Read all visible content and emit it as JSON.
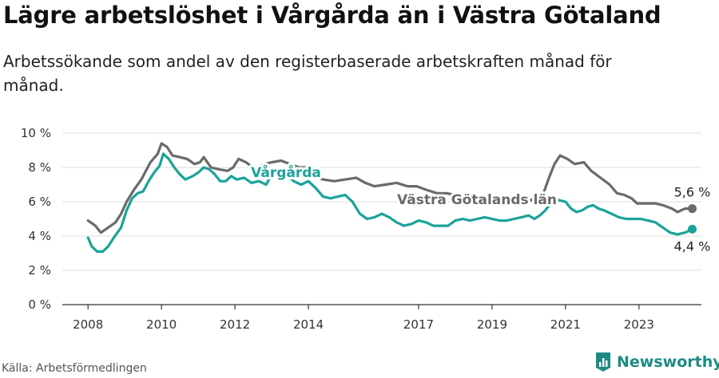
{
  "header": {
    "title": "Lägre arbetslöshet i Vårgårda än i Västra Götaland",
    "subtitle": "Arbetssökande som andel av den registerbaserade arbetskraften månad för månad."
  },
  "footer": {
    "source": "Källa: Arbetsförmedlingen",
    "brand": "Newsworthy"
  },
  "colors": {
    "vargarda": "#1aa39a",
    "vastra": "#6a6a6a",
    "grid": "#dddddd",
    "axis": "#333333"
  },
  "chart_data": {
    "type": "line",
    "title": "Lägre arbetslöshet i Vårgårda än i Västra Götaland",
    "xlabel": "",
    "ylabel": "",
    "ylim": [
      0,
      10
    ],
    "yticks": [
      0,
      2,
      4,
      6,
      8,
      10
    ],
    "ytick_labels": [
      "0 %",
      "2 %",
      "4 %",
      "6 %",
      "8 %",
      "10 %"
    ],
    "xticks": [
      2008,
      2010,
      2012,
      2014,
      2017,
      2019,
      2021,
      2023
    ],
    "xtick_labels": [
      "2008",
      "2010",
      "2012",
      "2014",
      "2017",
      "2019",
      "2021",
      "2023"
    ],
    "xlim": [
      2007.3,
      2024.7
    ],
    "series": [
      {
        "name": "Västra Götalands län",
        "label": "Västra Götalands län",
        "end_label": "5,6 %",
        "points": [
          [
            2008.0,
            4.9
          ],
          [
            2008.2,
            4.6
          ],
          [
            2008.35,
            4.2
          ],
          [
            2008.55,
            4.5
          ],
          [
            2008.75,
            4.8
          ],
          [
            2008.9,
            5.3
          ],
          [
            2009.05,
            6.0
          ],
          [
            2009.25,
            6.7
          ],
          [
            2009.45,
            7.3
          ],
          [
            2009.7,
            8.3
          ],
          [
            2009.9,
            8.8
          ],
          [
            2010.0,
            9.4
          ],
          [
            2010.15,
            9.2
          ],
          [
            2010.3,
            8.7
          ],
          [
            2010.5,
            8.6
          ],
          [
            2010.7,
            8.5
          ],
          [
            2010.9,
            8.2
          ],
          [
            2011.05,
            8.3
          ],
          [
            2011.15,
            8.6
          ],
          [
            2011.35,
            8.0
          ],
          [
            2011.55,
            7.9
          ],
          [
            2011.8,
            7.8
          ],
          [
            2011.95,
            8.0
          ],
          [
            2012.1,
            8.5
          ],
          [
            2012.3,
            8.3
          ],
          [
            2012.55,
            7.9
          ],
          [
            2012.8,
            8.2
          ],
          [
            2013.0,
            8.3
          ],
          [
            2013.25,
            8.4
          ],
          [
            2013.5,
            8.2
          ],
          [
            2013.75,
            8.0
          ],
          [
            2013.95,
            8.0
          ],
          [
            2014.15,
            7.5
          ],
          [
            2014.4,
            7.3
          ],
          [
            2014.7,
            7.2
          ],
          [
            2015.0,
            7.3
          ],
          [
            2015.3,
            7.4
          ],
          [
            2015.55,
            7.1
          ],
          [
            2015.8,
            6.9
          ],
          [
            2016.1,
            7.0
          ],
          [
            2016.4,
            7.1
          ],
          [
            2016.7,
            6.9
          ],
          [
            2016.95,
            6.9
          ],
          [
            2017.2,
            6.7
          ],
          [
            2017.5,
            6.5
          ],
          [
            2017.75,
            6.5
          ],
          [
            2018.0,
            6.4
          ],
          [
            2018.3,
            6.3
          ],
          [
            2018.6,
            6.1
          ],
          [
            2018.9,
            6.0
          ],
          [
            2019.2,
            5.9
          ],
          [
            2019.5,
            5.9
          ],
          [
            2019.75,
            5.8
          ],
          [
            2020.0,
            6.0
          ],
          [
            2020.2,
            6.3
          ],
          [
            2020.4,
            6.5
          ],
          [
            2020.55,
            7.4
          ],
          [
            2020.7,
            8.2
          ],
          [
            2020.85,
            8.7
          ],
          [
            2021.05,
            8.5
          ],
          [
            2021.25,
            8.2
          ],
          [
            2021.5,
            8.3
          ],
          [
            2021.7,
            7.8
          ],
          [
            2021.95,
            7.4
          ],
          [
            2022.2,
            7.0
          ],
          [
            2022.4,
            6.5
          ],
          [
            2022.6,
            6.4
          ],
          [
            2022.8,
            6.2
          ],
          [
            2022.95,
            5.9
          ],
          [
            2023.2,
            5.9
          ],
          [
            2023.45,
            5.9
          ],
          [
            2023.65,
            5.8
          ],
          [
            2023.9,
            5.6
          ],
          [
            2024.05,
            5.4
          ],
          [
            2024.25,
            5.6
          ],
          [
            2024.45,
            5.6
          ]
        ]
      },
      {
        "name": "Vårgårda",
        "label": "Vårgårda",
        "end_label": "4,4 %",
        "points": [
          [
            2008.0,
            3.9
          ],
          [
            2008.1,
            3.4
          ],
          [
            2008.25,
            3.1
          ],
          [
            2008.4,
            3.1
          ],
          [
            2008.55,
            3.4
          ],
          [
            2008.7,
            3.9
          ],
          [
            2008.9,
            4.5
          ],
          [
            2009.05,
            5.5
          ],
          [
            2009.2,
            6.2
          ],
          [
            2009.35,
            6.5
          ],
          [
            2009.5,
            6.6
          ],
          [
            2009.65,
            7.2
          ],
          [
            2009.8,
            7.7
          ],
          [
            2009.95,
            8.1
          ],
          [
            2010.05,
            8.8
          ],
          [
            2010.2,
            8.5
          ],
          [
            2010.35,
            8.0
          ],
          [
            2010.5,
            7.6
          ],
          [
            2010.65,
            7.3
          ],
          [
            2010.85,
            7.5
          ],
          [
            2011.0,
            7.7
          ],
          [
            2011.15,
            8.0
          ],
          [
            2011.3,
            7.9
          ],
          [
            2011.45,
            7.6
          ],
          [
            2011.6,
            7.2
          ],
          [
            2011.75,
            7.2
          ],
          [
            2011.9,
            7.5
          ],
          [
            2012.05,
            7.3
          ],
          [
            2012.25,
            7.4
          ],
          [
            2012.45,
            7.1
          ],
          [
            2012.65,
            7.2
          ],
          [
            2012.85,
            7.0
          ],
          [
            2013.0,
            7.6
          ],
          [
            2013.2,
            7.9
          ],
          [
            2013.4,
            7.6
          ],
          [
            2013.6,
            7.2
          ],
          [
            2013.8,
            7.0
          ],
          [
            2014.0,
            7.2
          ],
          [
            2014.2,
            6.8
          ],
          [
            2014.4,
            6.3
          ],
          [
            2014.6,
            6.2
          ],
          [
            2014.8,
            6.3
          ],
          [
            2015.0,
            6.4
          ],
          [
            2015.2,
            6.0
          ],
          [
            2015.4,
            5.3
          ],
          [
            2015.6,
            5.0
          ],
          [
            2015.8,
            5.1
          ],
          [
            2016.0,
            5.3
          ],
          [
            2016.2,
            5.1
          ],
          [
            2016.4,
            4.8
          ],
          [
            2016.6,
            4.6
          ],
          [
            2016.8,
            4.7
          ],
          [
            2017.0,
            4.9
          ],
          [
            2017.2,
            4.8
          ],
          [
            2017.4,
            4.6
          ],
          [
            2017.6,
            4.6
          ],
          [
            2017.8,
            4.6
          ],
          [
            2018.0,
            4.9
          ],
          [
            2018.2,
            5.0
          ],
          [
            2018.4,
            4.9
          ],
          [
            2018.6,
            5.0
          ],
          [
            2018.8,
            5.1
          ],
          [
            2019.0,
            5.0
          ],
          [
            2019.2,
            4.9
          ],
          [
            2019.4,
            4.9
          ],
          [
            2019.6,
            5.0
          ],
          [
            2019.8,
            5.1
          ],
          [
            2020.0,
            5.2
          ],
          [
            2020.15,
            5.0
          ],
          [
            2020.3,
            5.2
          ],
          [
            2020.45,
            5.5
          ],
          [
            2020.6,
            5.9
          ],
          [
            2020.8,
            6.1
          ],
          [
            2021.0,
            6.0
          ],
          [
            2021.15,
            5.6
          ],
          [
            2021.3,
            5.4
          ],
          [
            2021.45,
            5.5
          ],
          [
            2021.6,
            5.7
          ],
          [
            2021.75,
            5.8
          ],
          [
            2021.9,
            5.6
          ],
          [
            2022.05,
            5.5
          ],
          [
            2022.25,
            5.3
          ],
          [
            2022.45,
            5.1
          ],
          [
            2022.65,
            5.0
          ],
          [
            2022.85,
            5.0
          ],
          [
            2023.05,
            5.0
          ],
          [
            2023.25,
            4.9
          ],
          [
            2023.45,
            4.8
          ],
          [
            2023.65,
            4.5
          ],
          [
            2023.85,
            4.2
          ],
          [
            2024.05,
            4.1
          ],
          [
            2024.25,
            4.2
          ],
          [
            2024.45,
            4.4
          ]
        ]
      }
    ]
  }
}
